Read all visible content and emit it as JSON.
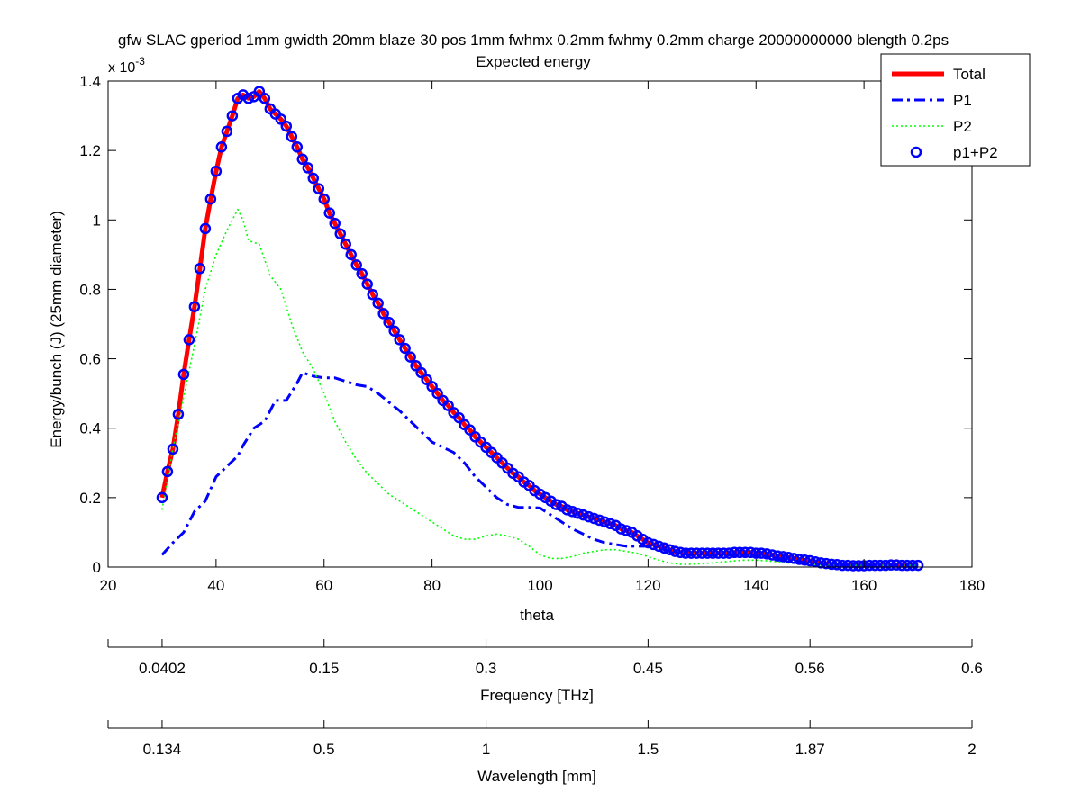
{
  "chart_data": {
    "type": "line",
    "title_line1": "gfw SLAC gperiod 1mm gwidth 20mm blaze 30 pos 1mm fwhmx 0.2mm fwhmy 0.2mm charge 20000000000 blength 0.2ps",
    "title_line2": "Expected energy",
    "xlabel": "theta",
    "ylabel": "Energy/bunch (J) (25mm diameter)",
    "y_multiplier_base": "x 10",
    "y_multiplier_exp": "-3",
    "xlim": [
      20,
      180
    ],
    "ylim": [
      0,
      1.4
    ],
    "x_ticks": [
      20,
      40,
      60,
      80,
      100,
      120,
      140,
      160,
      180
    ],
    "y_ticks": [
      0,
      0.2,
      0.4,
      0.6,
      0.8,
      1,
      1.2,
      1.4
    ],
    "y_tick_labels": [
      "0",
      "0.2",
      "0.4",
      "0.6",
      "0.8",
      "1",
      "1.2",
      "1.4"
    ],
    "legend_position": "top-right",
    "series": [
      {
        "name": "Total",
        "color": "#ff0000",
        "style": "solid",
        "x": [
          30,
          31,
          32,
          33,
          34,
          35,
          36,
          37,
          38,
          39,
          40,
          41,
          42,
          43,
          44,
          45,
          46,
          47,
          48,
          49,
          50,
          51,
          52,
          53,
          54,
          55,
          56,
          57,
          58,
          59,
          60,
          61,
          62,
          63,
          64,
          65,
          66,
          67,
          68,
          69,
          70,
          71,
          72,
          73,
          74,
          75,
          76,
          77,
          78,
          79,
          80,
          81,
          82,
          83,
          84,
          85,
          86,
          87,
          88,
          89,
          90,
          91,
          92,
          93,
          94,
          95,
          96,
          97,
          98,
          99,
          100,
          101,
          102,
          103,
          104,
          105,
          106,
          107,
          108,
          109,
          110,
          111,
          112,
          113,
          114,
          115,
          116,
          117,
          118,
          119,
          120,
          121,
          122,
          123,
          124,
          125,
          126,
          127,
          128,
          129,
          130,
          131,
          132,
          133,
          134,
          135,
          136,
          137,
          138,
          139,
          140,
          141,
          142,
          143,
          144,
          145,
          146,
          147,
          148,
          149,
          150,
          151,
          152,
          153,
          154,
          155,
          156,
          157,
          158,
          159,
          160,
          161,
          162,
          163,
          164,
          165,
          166,
          167,
          168,
          169,
          170
        ],
        "y": [
          0.2,
          0.275,
          0.34,
          0.44,
          0.555,
          0.655,
          0.75,
          0.86,
          0.975,
          1.06,
          1.14,
          1.21,
          1.255,
          1.3,
          1.35,
          1.36,
          1.35,
          1.355,
          1.37,
          1.35,
          1.32,
          1.305,
          1.29,
          1.27,
          1.24,
          1.21,
          1.175,
          1.15,
          1.12,
          1.09,
          1.06,
          1.02,
          0.99,
          0.96,
          0.93,
          0.9,
          0.87,
          0.845,
          0.815,
          0.785,
          0.76,
          0.73,
          0.705,
          0.68,
          0.655,
          0.63,
          0.605,
          0.58,
          0.56,
          0.54,
          0.52,
          0.5,
          0.48,
          0.465,
          0.445,
          0.43,
          0.41,
          0.395,
          0.375,
          0.36,
          0.345,
          0.33,
          0.315,
          0.3,
          0.285,
          0.27,
          0.26,
          0.245,
          0.235,
          0.22,
          0.21,
          0.2,
          0.19,
          0.18,
          0.175,
          0.165,
          0.16,
          0.155,
          0.15,
          0.145,
          0.14,
          0.135,
          0.13,
          0.125,
          0.12,
          0.11,
          0.105,
          0.1,
          0.09,
          0.08,
          0.07,
          0.065,
          0.06,
          0.055,
          0.05,
          0.045,
          0.042,
          0.04,
          0.04,
          0.04,
          0.04,
          0.04,
          0.04,
          0.04,
          0.04,
          0.04,
          0.042,
          0.042,
          0.042,
          0.042,
          0.04,
          0.04,
          0.038,
          0.035,
          0.032,
          0.03,
          0.028,
          0.025,
          0.022,
          0.02,
          0.018,
          0.015,
          0.012,
          0.01,
          0.008,
          0.007,
          0.005,
          0.005,
          0.004,
          0.004,
          0.004,
          0.005,
          0.005,
          0.005,
          0.005,
          0.006,
          0.006,
          0.005,
          0.005,
          0.005,
          0.005
        ]
      },
      {
        "name": "P1",
        "color": "#0000ff",
        "style": "dashdot",
        "x": [
          30,
          32,
          34,
          36,
          38,
          40,
          42,
          44,
          45,
          47,
          49,
          51,
          53,
          55,
          56,
          58,
          60,
          62,
          64,
          66,
          68,
          70,
          72,
          74,
          76,
          78,
          80,
          82,
          84,
          86,
          88,
          90,
          92,
          94,
          96,
          98,
          100,
          102,
          104,
          106,
          108,
          110,
          112,
          114,
          116,
          118,
          120,
          122,
          124,
          126,
          128,
          130,
          132,
          134,
          136,
          138,
          140,
          142,
          144,
          146,
          148,
          150,
          152,
          154,
          156,
          158,
          160,
          162,
          164,
          166,
          168,
          170
        ],
        "y": [
          0.035,
          0.07,
          0.1,
          0.16,
          0.19,
          0.26,
          0.29,
          0.32,
          0.35,
          0.4,
          0.42,
          0.48,
          0.48,
          0.53,
          0.56,
          0.55,
          0.545,
          0.545,
          0.535,
          0.525,
          0.52,
          0.5,
          0.475,
          0.45,
          0.42,
          0.39,
          0.36,
          0.345,
          0.33,
          0.3,
          0.26,
          0.23,
          0.2,
          0.18,
          0.172,
          0.172,
          0.17,
          0.15,
          0.13,
          0.11,
          0.095,
          0.08,
          0.07,
          0.065,
          0.06,
          0.06,
          0.06,
          0.055,
          0.045,
          0.04,
          0.035,
          0.035,
          0.035,
          0.035,
          0.035,
          0.035,
          0.03,
          0.028,
          0.025,
          0.02,
          0.015,
          0.01,
          0.008,
          0.007,
          0.006,
          0.005,
          0.005,
          0.005,
          0.005,
          0.005,
          0.005,
          0.005
        ]
      },
      {
        "name": "P2",
        "color": "#00ff00",
        "style": "dotted",
        "x": [
          30,
          32,
          34,
          36,
          38,
          40,
          42,
          44,
          45,
          46,
          48,
          50,
          52,
          54,
          56,
          58,
          60,
          62,
          64,
          66,
          68,
          70,
          72,
          74,
          76,
          78,
          80,
          82,
          84,
          86,
          88,
          90,
          92,
          94,
          96,
          98,
          100,
          102,
          104,
          106,
          108,
          110,
          112,
          114,
          116,
          118,
          120,
          122,
          124,
          126,
          128,
          130,
          132,
          134,
          136,
          138,
          140,
          142,
          144,
          146,
          148,
          150,
          152,
          154,
          156,
          158,
          160,
          162,
          164,
          166,
          168,
          170
        ],
        "y": [
          0.165,
          0.34,
          0.49,
          0.64,
          0.8,
          0.9,
          0.97,
          1.03,
          1.0,
          0.94,
          0.93,
          0.84,
          0.8,
          0.7,
          0.62,
          0.57,
          0.5,
          0.42,
          0.36,
          0.31,
          0.27,
          0.24,
          0.21,
          0.19,
          0.17,
          0.15,
          0.13,
          0.11,
          0.09,
          0.08,
          0.08,
          0.09,
          0.095,
          0.09,
          0.08,
          0.06,
          0.035,
          0.025,
          0.025,
          0.03,
          0.04,
          0.045,
          0.05,
          0.05,
          0.045,
          0.04,
          0.03,
          0.02,
          0.012,
          0.008,
          0.008,
          0.01,
          0.012,
          0.015,
          0.018,
          0.02,
          0.02,
          0.018,
          0.015,
          0.012,
          0.01,
          0.008,
          0.006,
          0.005,
          0.005,
          0.005,
          0.005,
          0.005,
          0.005,
          0.005,
          0.005,
          0.005
        ]
      },
      {
        "name": "p1+P2",
        "color": "#0000ff",
        "style": "circle-markers",
        "x": [
          30,
          31,
          32,
          33,
          34,
          35,
          36,
          37,
          38,
          39,
          40,
          41,
          42,
          43,
          44,
          45,
          46,
          47,
          48,
          49,
          50,
          51,
          52,
          53,
          54,
          55,
          56,
          57,
          58,
          59,
          60,
          61,
          62,
          63,
          64,
          65,
          66,
          67,
          68,
          69,
          70,
          71,
          72,
          73,
          74,
          75,
          76,
          77,
          78,
          79,
          80,
          81,
          82,
          83,
          84,
          85,
          86,
          87,
          88,
          89,
          90,
          91,
          92,
          93,
          94,
          95,
          96,
          97,
          98,
          99,
          100,
          101,
          102,
          103,
          104,
          105,
          106,
          107,
          108,
          109,
          110,
          111,
          112,
          113,
          114,
          115,
          116,
          117,
          118,
          119,
          120,
          121,
          122,
          123,
          124,
          125,
          126,
          127,
          128,
          129,
          130,
          131,
          132,
          133,
          134,
          135,
          136,
          137,
          138,
          139,
          140,
          141,
          142,
          143,
          144,
          145,
          146,
          147,
          148,
          149,
          150,
          151,
          152,
          153,
          154,
          155,
          156,
          157,
          158,
          159,
          160,
          161,
          162,
          163,
          164,
          165,
          166,
          167,
          168,
          169,
          170
        ],
        "y": [
          0.2,
          0.275,
          0.34,
          0.44,
          0.555,
          0.655,
          0.75,
          0.86,
          0.975,
          1.06,
          1.14,
          1.21,
          1.255,
          1.3,
          1.35,
          1.36,
          1.35,
          1.355,
          1.37,
          1.35,
          1.32,
          1.305,
          1.29,
          1.27,
          1.24,
          1.21,
          1.175,
          1.15,
          1.12,
          1.09,
          1.06,
          1.02,
          0.99,
          0.96,
          0.93,
          0.9,
          0.87,
          0.845,
          0.815,
          0.785,
          0.76,
          0.73,
          0.705,
          0.68,
          0.655,
          0.63,
          0.605,
          0.58,
          0.56,
          0.54,
          0.52,
          0.5,
          0.48,
          0.465,
          0.445,
          0.43,
          0.41,
          0.395,
          0.375,
          0.36,
          0.345,
          0.33,
          0.315,
          0.3,
          0.285,
          0.27,
          0.26,
          0.245,
          0.235,
          0.22,
          0.21,
          0.2,
          0.19,
          0.18,
          0.175,
          0.165,
          0.16,
          0.155,
          0.15,
          0.145,
          0.14,
          0.135,
          0.13,
          0.125,
          0.12,
          0.11,
          0.105,
          0.1,
          0.09,
          0.08,
          0.07,
          0.065,
          0.06,
          0.055,
          0.05,
          0.045,
          0.042,
          0.04,
          0.04,
          0.04,
          0.04,
          0.04,
          0.04,
          0.04,
          0.04,
          0.04,
          0.042,
          0.042,
          0.042,
          0.042,
          0.04,
          0.04,
          0.038,
          0.035,
          0.032,
          0.03,
          0.028,
          0.025,
          0.022,
          0.02,
          0.018,
          0.015,
          0.012,
          0.01,
          0.008,
          0.007,
          0.005,
          0.005,
          0.004,
          0.004,
          0.004,
          0.005,
          0.005,
          0.005,
          0.005,
          0.006,
          0.006,
          0.005,
          0.005,
          0.005,
          0.005
        ]
      }
    ],
    "secondary_axes": [
      {
        "label": "Frequency [THz]",
        "ticks": [
          {
            "theta": 20,
            "label": ""
          },
          {
            "theta": 30,
            "label": "0.0402"
          },
          {
            "theta": 60,
            "label": "0.15"
          },
          {
            "theta": 90,
            "label": "0.3"
          },
          {
            "theta": 120,
            "label": "0.45"
          },
          {
            "theta": 150,
            "label": "0.56"
          },
          {
            "theta": 180,
            "label": "0.6"
          }
        ]
      },
      {
        "label": "Wavelength [mm]",
        "ticks": [
          {
            "theta": 20,
            "label": ""
          },
          {
            "theta": 30,
            "label": "0.134"
          },
          {
            "theta": 60,
            "label": "0.5"
          },
          {
            "theta": 90,
            "label": "1"
          },
          {
            "theta": 120,
            "label": "1.5"
          },
          {
            "theta": 150,
            "label": "1.87"
          },
          {
            "theta": 180,
            "label": "2"
          }
        ]
      }
    ]
  }
}
